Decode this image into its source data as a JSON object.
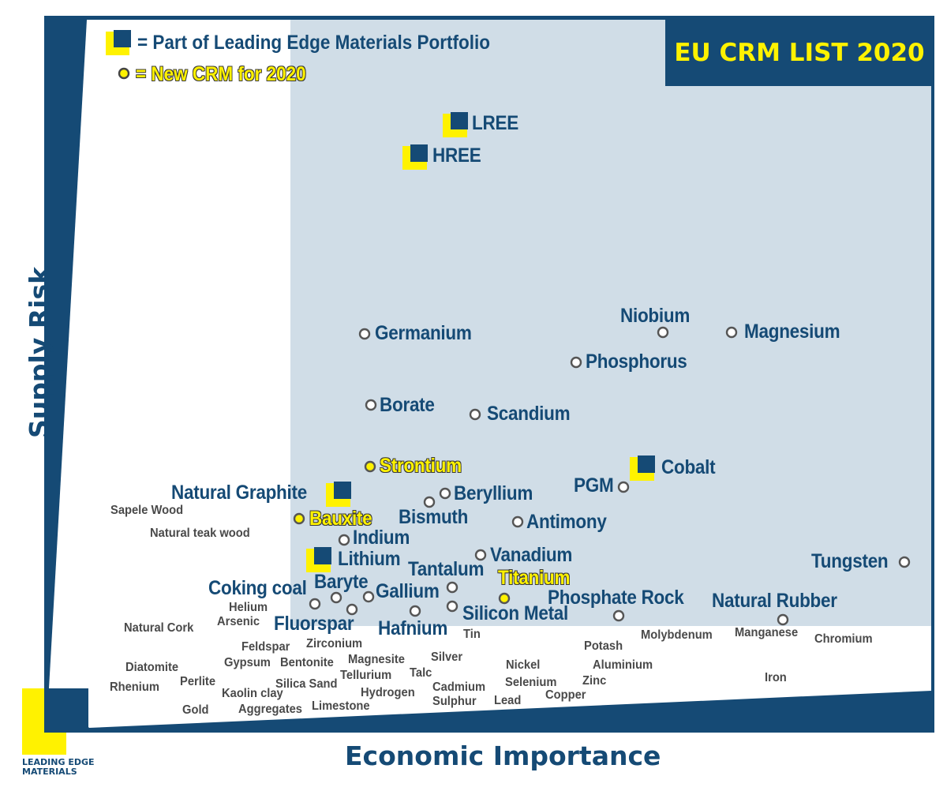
{
  "title": "EU CRM LIST 2020",
  "xlabel": "Economic Importance",
  "ylabel": "Supply Risk",
  "logo_text": [
    "LEADING EDGE",
    "MATERIALS"
  ],
  "legend": {
    "portfolio": "= Part of Leading Edge Materials Portfolio",
    "new_crm": "= New CRM for 2020"
  },
  "colors": {
    "navy": "#154a75",
    "yellow": "#fff200",
    "crm_zone": "#d0dde7",
    "marker_outline": "#555555",
    "non_crm_text": "#4a4a4a"
  },
  "chart_data": {
    "type": "scatter",
    "title": "EU CRM LIST 2020",
    "xlabel": "Economic Importance",
    "ylabel": "Supply Risk",
    "critical_zone": {
      "economic_importance_min": 2.8,
      "supply_risk_min": 1.0
    },
    "series": [
      {
        "name": "Part of Leading Edge Materials Portfolio",
        "marker": "square",
        "points": [
          {
            "label": "LREE",
            "x": 3.9,
            "y": 6.0
          },
          {
            "label": "HREE",
            "x": 3.7,
            "y": 5.6
          },
          {
            "label": "Cobalt",
            "x": 5.9,
            "y": 2.5
          },
          {
            "label": "Natural Graphite",
            "x": 3.1,
            "y": 2.3
          },
          {
            "label": "Lithium",
            "x": 2.4,
            "y": 1.6
          }
        ]
      },
      {
        "name": "New CRM for 2020",
        "marker": "circle-yellow",
        "points": [
          {
            "label": "Strontium",
            "x": 3.3,
            "y": 2.6
          },
          {
            "label": "Bauxite",
            "x": 2.9,
            "y": 2.1
          },
          {
            "label": "Titanium",
            "x": 4.6,
            "y": 1.3
          }
        ]
      },
      {
        "marker": "circle",
        "points": [
          {
            "label": "Germanium",
            "x": 3.5,
            "y": 3.9
          },
          {
            "label": "Niobium",
            "x": 6.0,
            "y": 3.9
          },
          {
            "label": "Magnesium",
            "x": 6.6,
            "y": 3.9
          },
          {
            "label": "Phosphorus",
            "x": 5.1,
            "y": 3.5
          },
          {
            "label": "Borate",
            "x": 3.1,
            "y": 3.0
          },
          {
            "label": "Scandium",
            "x": 4.4,
            "y": 2.9
          },
          {
            "label": "Beryllium",
            "x": 4.2,
            "y": 2.3
          },
          {
            "label": "Bismuth",
            "x": 3.8,
            "y": 2.2
          },
          {
            "label": "PGM",
            "x": 5.6,
            "y": 2.3
          },
          {
            "label": "Antimony",
            "x": 4.3,
            "y": 2.0
          },
          {
            "label": "Indium",
            "x": 3.3,
            "y": 1.8
          },
          {
            "label": "Vanadium",
            "x": 4.4,
            "y": 1.7
          },
          {
            "label": "Tungsten",
            "x": 8.1,
            "y": 1.6
          },
          {
            "label": "Tantalum",
            "x": 3.9,
            "y": 1.4
          },
          {
            "label": "Baryte",
            "x": 2.9,
            "y": 1.3
          },
          {
            "label": "Gallium",
            "x": 3.4,
            "y": 1.3
          },
          {
            "label": "Coking coal",
            "x": 3.0,
            "y": 1.2
          },
          {
            "label": "Fluorspar",
            "x": 3.3,
            "y": 1.2
          },
          {
            "label": "Hafnium",
            "x": 3.8,
            "y": 1.1
          },
          {
            "label": "Silicon Metal",
            "x": 4.2,
            "y": 1.2
          },
          {
            "label": "Phosphate Rock",
            "x": 5.6,
            "y": 1.0
          },
          {
            "label": "Natural Rubber",
            "x": 7.0,
            "y": 1.0
          }
        ]
      }
    ],
    "non_critical_labels": [
      "Sapele Wood",
      "Natural teak wood",
      "Natural Cork",
      "Helium",
      "Arsenic",
      "Feldspar",
      "Zirconium",
      "Gypsum",
      "Bentonite",
      "Magnesite",
      "Silver",
      "Tellurium",
      "Talc",
      "Diatomite",
      "Rhenium",
      "Perlite",
      "Silica Sand",
      "Kaolin clay",
      "Gold",
      "Aggregates",
      "Limestone",
      "Hydrogen",
      "Cadmium",
      "Sulphur",
      "Lead",
      "Nickel",
      "Selenium",
      "Copper",
      "Zinc",
      "Aluminium",
      "Potash",
      "Molybdenum",
      "Manganese",
      "Chromium",
      "Iron",
      "Tin"
    ]
  }
}
